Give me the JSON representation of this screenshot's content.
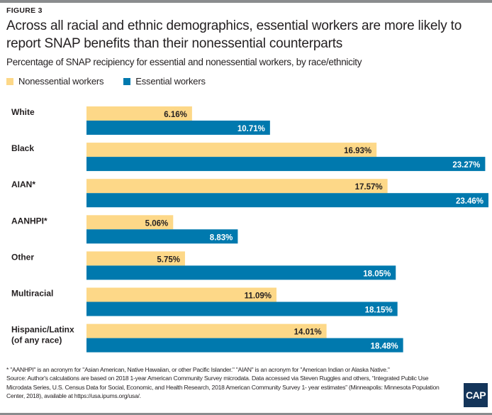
{
  "header": {
    "figure_label": "FIGURE 3",
    "title": "Across all racial and ethnic demographics, essential workers are more likely to report SNAP benefits than their nonessential counterparts",
    "subtitle": "Percentage of SNAP recipiency for essential and nonessential workers, by race/ethnicity"
  },
  "colors": {
    "nonessential": "#fdd888",
    "essential": "#0079ae",
    "label_dark": "#231f20",
    "label_light": "#ffffff"
  },
  "chart_data": {
    "type": "bar",
    "orientation": "horizontal",
    "title": "Across all racial and ethnic demographics, essential workers are more likely to report SNAP benefits than their nonessential counterparts",
    "subtitle": "Percentage of SNAP recipiency for essential and nonessential workers, by race/ethnicity",
    "xlabel": "",
    "ylabel": "",
    "xlim": [
      0,
      23.46
    ],
    "grid": false,
    "legend_position": "top-left",
    "unit": "%",
    "categories": [
      "White",
      "Black",
      "AIAN*",
      "AANHPI*",
      "Other",
      "Multiracial",
      "Hispanic/Latinx (of any race)"
    ],
    "category_lines": [
      [
        "White"
      ],
      [
        "Black"
      ],
      [
        "AIAN*"
      ],
      [
        "AANHPI*"
      ],
      [
        "Other"
      ],
      [
        "Multiracial"
      ],
      [
        "Hispanic/Latinx",
        "(of any race)"
      ]
    ],
    "series": [
      {
        "name": "Nonessential workers",
        "values": [
          6.16,
          16.93,
          17.57,
          5.06,
          5.75,
          11.09,
          14.01
        ],
        "labels": [
          "6.16%",
          "16.93%",
          "17.57%",
          "5.06%",
          "5.75%",
          "11.09%",
          "14.01%"
        ]
      },
      {
        "name": "Essential workers",
        "values": [
          10.71,
          23.27,
          23.46,
          8.83,
          18.05,
          18.15,
          18.48
        ],
        "labels": [
          "10.71%",
          "23.27%",
          "23.46%",
          "8.83%",
          "18.05%",
          "18.15%",
          "18.48%"
        ]
      }
    ]
  },
  "footer": {
    "note": "* \"AANHPI\" is an acronym for \"Asian American, Native Hawaiian, or other Pacific Islander.\" \"AIAN\" is an acronym for \"American Indian or Alaska Native.\"",
    "source": "Source: Author's calculations are based on 2018 1-year American Community Survey microdata. Data accessed via Steven Ruggles and others, “Integrated Public Use Microdata Series, U.S. Census Data for Social, Economic, and Health Research, 2018 American Community Survey 1- year estimates” (Minneapolis: Minnesota Population Center, 2018), available at https://usa.ipums.org/usa/.",
    "logo_text": "CAP"
  }
}
